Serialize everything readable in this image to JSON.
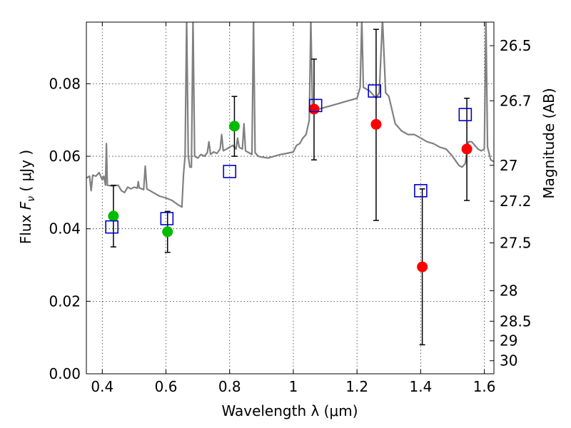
{
  "chart_data": {
    "type": "scatter",
    "title": "",
    "xlabel": "Wavelength  λ (μm)",
    "ylabel": "Flux  F_ν  ( μJy )",
    "ylabel_parts": {
      "prefix": "Flux  ",
      "symbol": "F",
      "subscript": "ν",
      "suffix": "  ( μJy )"
    },
    "y2label": "Magnitude (AB)",
    "xlim": [
      0.35,
      1.63
    ],
    "ylim": [
      0.0,
      0.097
    ],
    "grid": true,
    "x_ticks": [
      0.4,
      0.6,
      0.8,
      1.0,
      1.2,
      1.4,
      1.6
    ],
    "x_tick_labels": [
      "0.4",
      "0.6",
      "0.8",
      "1",
      "1.2",
      "1.4",
      "1.6"
    ],
    "y_ticks": [
      0.0,
      0.02,
      0.04,
      0.06,
      0.08
    ],
    "y_tick_labels": [
      "0.00",
      "0.02",
      "0.04",
      "0.06",
      "0.08"
    ],
    "mag_ticks": [
      {
        "label": "26.5",
        "flux": 0.0905
      },
      {
        "label": "26.7",
        "flux": 0.0753
      },
      {
        "label": "27",
        "flux": 0.0575
      },
      {
        "label": "27.2",
        "flux": 0.0476
      },
      {
        "label": "27.5",
        "flux": 0.0361
      },
      {
        "label": "28",
        "flux": 0.0229
      },
      {
        "label": "28.5",
        "flux": 0.0145
      },
      {
        "label": "29",
        "flux": 0.0091
      },
      {
        "label": "30",
        "flux": 0.0036
      }
    ],
    "colors": {
      "spectrum": "#808080",
      "green": "#00bb00",
      "red": "#ff0000",
      "model": "#0000cc",
      "errorbar": "#000000"
    },
    "spectrum": [
      [
        0.35,
        0.054
      ],
      [
        0.36,
        0.0545
      ],
      [
        0.365,
        0.0505
      ],
      [
        0.37,
        0.0548
      ],
      [
        0.38,
        0.0545
      ],
      [
        0.39,
        0.0555
      ],
      [
        0.4,
        0.0535
      ],
      [
        0.405,
        0.0545
      ],
      [
        0.41,
        0.052
      ],
      [
        0.413,
        0.0635
      ],
      [
        0.416,
        0.052
      ],
      [
        0.43,
        0.0518
      ],
      [
        0.45,
        0.052
      ],
      [
        0.46,
        0.0505
      ],
      [
        0.47,
        0.05
      ],
      [
        0.48,
        0.0515
      ],
      [
        0.49,
        0.051
      ],
      [
        0.5,
        0.0515
      ],
      [
        0.51,
        0.0512
      ],
      [
        0.513,
        0.053
      ],
      [
        0.516,
        0.0513
      ],
      [
        0.53,
        0.0508
      ],
      [
        0.535,
        0.0573
      ],
      [
        0.54,
        0.051
      ],
      [
        0.56,
        0.05
      ],
      [
        0.58,
        0.049
      ],
      [
        0.6,
        0.0485
      ],
      [
        0.62,
        0.0478
      ],
      [
        0.64,
        0.0465
      ],
      [
        0.65,
        0.046
      ],
      [
        0.655,
        0.055
      ],
      [
        0.66,
        0.06
      ],
      [
        0.665,
        0.098
      ],
      [
        0.67,
        0.06
      ],
      [
        0.675,
        0.057
      ],
      [
        0.68,
        0.057
      ],
      [
        0.685,
        0.098
      ],
      [
        0.69,
        0.06
      ],
      [
        0.7,
        0.0595
      ],
      [
        0.71,
        0.0605
      ],
      [
        0.72,
        0.06
      ],
      [
        0.73,
        0.061
      ],
      [
        0.735,
        0.064
      ],
      [
        0.74,
        0.0605
      ],
      [
        0.75,
        0.0612
      ],
      [
        0.76,
        0.0608
      ],
      [
        0.77,
        0.062
      ],
      [
        0.775,
        0.066
      ],
      [
        0.78,
        0.0615
      ],
      [
        0.79,
        0.062
      ],
      [
        0.8,
        0.0625
      ],
      [
        0.81,
        0.063
      ],
      [
        0.82,
        0.062
      ],
      [
        0.825,
        0.065
      ],
      [
        0.83,
        0.0625
      ],
      [
        0.84,
        0.062
      ],
      [
        0.845,
        0.069
      ],
      [
        0.85,
        0.0615
      ],
      [
        0.86,
        0.061
      ],
      [
        0.87,
        0.0605
      ],
      [
        0.875,
        0.098
      ],
      [
        0.88,
        0.061
      ],
      [
        0.89,
        0.06
      ],
      [
        0.9,
        0.0598
      ],
      [
        0.92,
        0.0595
      ],
      [
        0.94,
        0.06
      ],
      [
        0.96,
        0.0605
      ],
      [
        0.98,
        0.0608
      ],
      [
        1.0,
        0.0612
      ],
      [
        1.01,
        0.063
      ],
      [
        1.02,
        0.0635
      ],
      [
        1.03,
        0.065
      ],
      [
        1.04,
        0.066
      ],
      [
        1.05,
        0.07
      ],
      [
        1.055,
        0.098
      ],
      [
        1.06,
        0.074
      ],
      [
        1.07,
        0.0735
      ],
      [
        1.08,
        0.073
      ],
      [
        1.1,
        0.0735
      ],
      [
        1.12,
        0.074
      ],
      [
        1.14,
        0.0745
      ],
      [
        1.16,
        0.075
      ],
      [
        1.18,
        0.0755
      ],
      [
        1.2,
        0.076
      ],
      [
        1.21,
        0.079
      ],
      [
        1.215,
        0.098
      ],
      [
        1.22,
        0.079
      ],
      [
        1.24,
        0.078
      ],
      [
        1.26,
        0.076
      ],
      [
        1.27,
        0.0775
      ],
      [
        1.28,
        0.098
      ],
      [
        1.29,
        0.0775
      ],
      [
        1.3,
        0.0765
      ],
      [
        1.32,
        0.069
      ],
      [
        1.34,
        0.067
      ],
      [
        1.36,
        0.066
      ],
      [
        1.38,
        0.066
      ],
      [
        1.4,
        0.065
      ],
      [
        1.42,
        0.064
      ],
      [
        1.44,
        0.0635
      ],
      [
        1.46,
        0.0625
      ],
      [
        1.48,
        0.062
      ],
      [
        1.5,
        0.06
      ],
      [
        1.52,
        0.0575
      ],
      [
        1.53,
        0.057
      ],
      [
        1.54,
        0.058
      ],
      [
        1.55,
        0.064
      ],
      [
        1.56,
        0.064
      ],
      [
        1.57,
        0.063
      ],
      [
        1.58,
        0.062
      ],
      [
        1.59,
        0.0615
      ],
      [
        1.6,
        0.062
      ],
      [
        1.605,
        0.098
      ],
      [
        1.61,
        0.0625
      ],
      [
        1.62,
        0.059
      ],
      [
        1.63,
        0.0585
      ]
    ],
    "observed_green": [
      {
        "x": 0.435,
        "y": 0.0435,
        "yerr_low": 0.035,
        "yerr_high": 0.052
      },
      {
        "x": 0.605,
        "y": 0.0392,
        "yerr_low": 0.0335,
        "yerr_high": 0.0448
      },
      {
        "x": 0.815,
        "y": 0.0683,
        "yerr_low": 0.06,
        "yerr_high": 0.0765
      }
    ],
    "observed_red": [
      {
        "x": 1.065,
        "y": 0.073,
        "yerr_low": 0.059,
        "yerr_high": 0.0868
      },
      {
        "x": 1.26,
        "y": 0.0688,
        "yerr_low": 0.0423,
        "yerr_high": 0.095
      },
      {
        "x": 1.405,
        "y": 0.0295,
        "yerr_low": 0.008,
        "yerr_high": 0.051
      },
      {
        "x": 1.545,
        "y": 0.062,
        "yerr_low": 0.0478,
        "yerr_high": 0.076
      }
    ],
    "model_points": [
      {
        "x": 0.43,
        "y": 0.0405
      },
      {
        "x": 0.603,
        "y": 0.0428
      },
      {
        "x": 0.8,
        "y": 0.0558
      },
      {
        "x": 1.07,
        "y": 0.074
      },
      {
        "x": 1.255,
        "y": 0.078
      },
      {
        "x": 1.4,
        "y": 0.0505
      },
      {
        "x": 1.54,
        "y": 0.0715
      }
    ]
  }
}
